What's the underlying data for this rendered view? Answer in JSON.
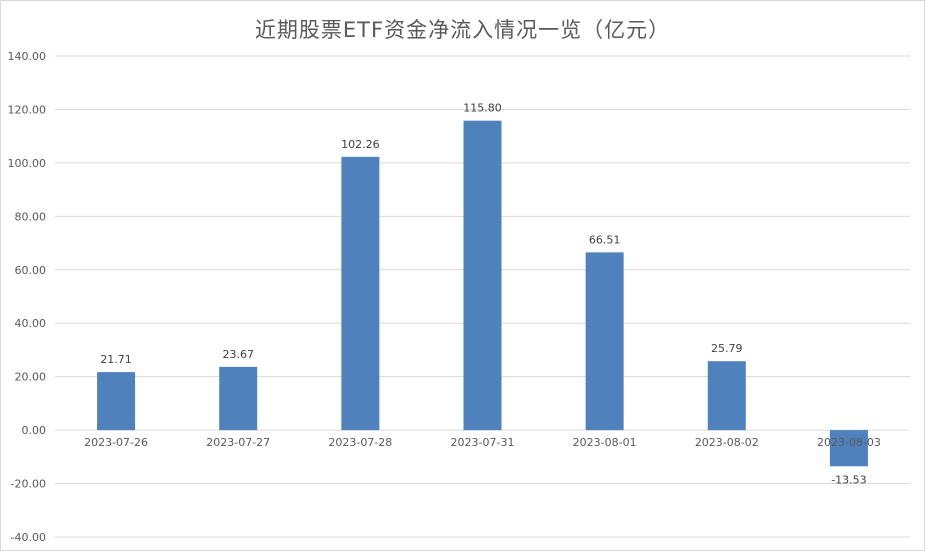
{
  "chart_data": {
    "type": "bar",
    "title": "近期股票ETF资金净流入情况一览（亿元）",
    "categories": [
      "2023-07-26",
      "2023-07-27",
      "2023-07-28",
      "2023-07-31",
      "2023-08-01",
      "2023-08-02",
      "2023-08-03"
    ],
    "values": [
      21.71,
      23.67,
      102.26,
      115.8,
      66.51,
      25.79,
      -13.53
    ],
    "value_labels": [
      "21.71",
      "23.67",
      "102.26",
      "115.80",
      "66.51",
      "25.79",
      "-13.53"
    ],
    "ylim": [
      -40,
      140
    ],
    "yticks": [
      "140.00",
      "120.00",
      "100.00",
      "80.00",
      "60.00",
      "40.00",
      "20.00",
      "0.00",
      "-20.00",
      "-40.00"
    ],
    "bar_color": "#4f81bd",
    "grid": true,
    "legend": false
  }
}
